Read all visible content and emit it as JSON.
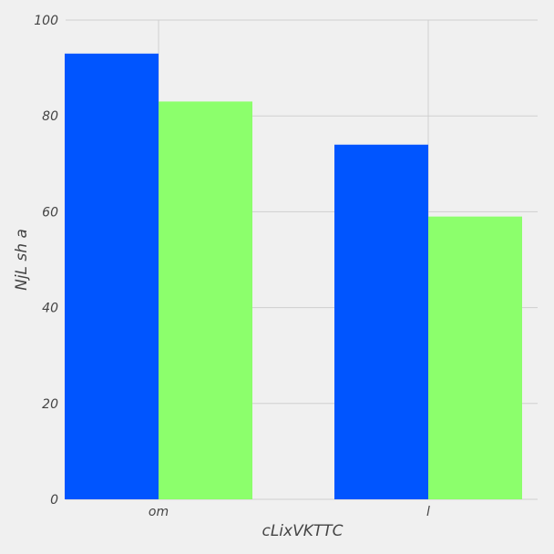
{
  "chart_data": {
    "type": "bar",
    "title": "",
    "xlabel": "cLixVKTTC",
    "ylabel": "NjL sh a",
    "categories": [
      "om",
      "l"
    ],
    "series": [
      {
        "color": "#0055ff",
        "values": [
          93,
          74
        ]
      },
      {
        "color": "#8cff6c",
        "values": [
          83,
          59
        ]
      }
    ],
    "ylim": [
      0,
      100
    ],
    "yticks": [
      0,
      20,
      40,
      60,
      80,
      100
    ],
    "grid": true,
    "background": "#f0f0f0"
  }
}
